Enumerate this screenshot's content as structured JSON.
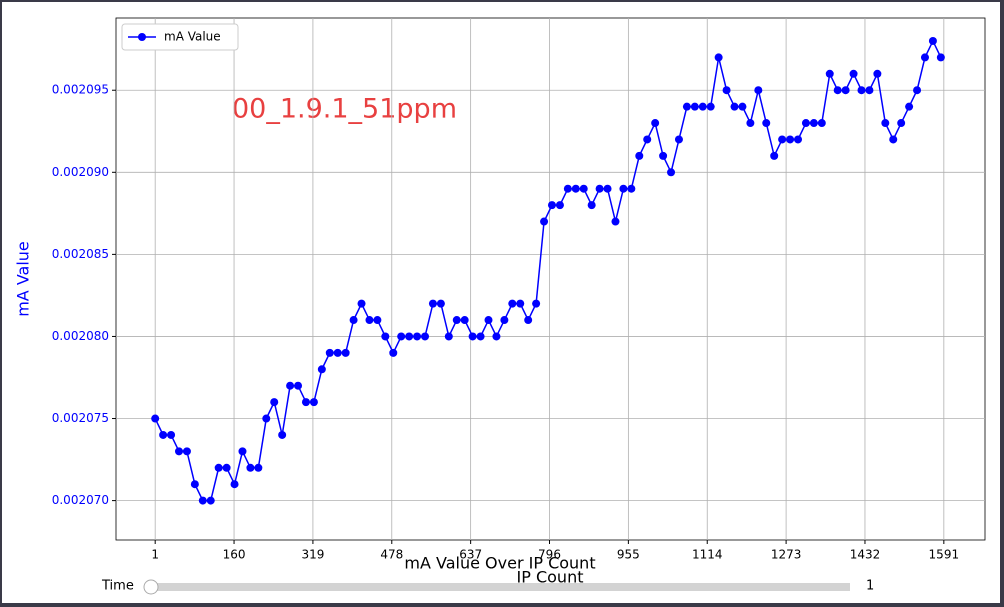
{
  "chart_data": {
    "type": "line",
    "title": "mA Value Over IP Count",
    "x_label": "IP Count",
    "y_label": "mA Value",
    "annotation": "00_1.9.1_51ppm",
    "annotation_color": "#e84040",
    "axis_label_color": "#0000ff",
    "x": [
      1,
      17,
      33,
      49,
      65,
      81,
      97,
      113,
      129,
      145,
      161,
      177,
      193,
      209,
      225,
      241,
      257,
      273,
      289,
      305,
      321,
      337,
      353,
      369,
      385,
      401,
      417,
      433,
      449,
      465,
      481,
      497,
      513,
      529,
      545,
      561,
      577,
      593,
      609,
      625,
      641,
      657,
      673,
      689,
      705,
      721,
      737,
      753,
      769,
      785,
      801,
      817,
      833,
      849,
      865,
      881,
      897,
      913,
      929,
      945,
      961,
      977,
      993,
      1009,
      1025,
      1041,
      1057,
      1073,
      1089,
      1105,
      1121,
      1137,
      1153,
      1169,
      1185,
      1201,
      1217,
      1233,
      1249,
      1265,
      1281,
      1297,
      1313,
      1329,
      1345,
      1361,
      1377,
      1393,
      1409,
      1425,
      1441,
      1457,
      1473,
      1489,
      1505,
      1521,
      1537,
      1553,
      1569,
      1585
    ],
    "series": [
      {
        "name": "mA Value",
        "color": "#0000ff",
        "values": [
          0.002075,
          0.002074,
          0.002074,
          0.002073,
          0.002073,
          0.002071,
          0.00207,
          0.00207,
          0.002072,
          0.002072,
          0.002071,
          0.002073,
          0.002072,
          0.002072,
          0.002075,
          0.002076,
          0.002074,
          0.002077,
          0.002077,
          0.002076,
          0.002076,
          0.002078,
          0.002079,
          0.002079,
          0.002079,
          0.002081,
          0.002082,
          0.002081,
          0.002081,
          0.00208,
          0.002079,
          0.00208,
          0.00208,
          0.00208,
          0.00208,
          0.002082,
          0.002082,
          0.00208,
          0.002081,
          0.002081,
          0.00208,
          0.00208,
          0.002081,
          0.00208,
          0.002081,
          0.002082,
          0.002082,
          0.002081,
          0.002082,
          0.002087,
          0.002088,
          0.002088,
          0.002089,
          0.002089,
          0.002089,
          0.002088,
          0.002089,
          0.002089,
          0.002087,
          0.002089,
          0.002089,
          0.002091,
          0.002092,
          0.002093,
          0.002091,
          0.00209,
          0.002092,
          0.002094,
          0.002094,
          0.002094,
          0.002094,
          0.002097,
          0.002095,
          0.002094,
          0.002094,
          0.002093,
          0.002095,
          0.002093,
          0.002091,
          0.002092,
          0.002092,
          0.002092,
          0.002093,
          0.002093,
          0.002093,
          0.002096,
          0.002095,
          0.002095,
          0.002096,
          0.002095,
          0.002095,
          0.002096,
          0.002093,
          0.002092,
          0.002093,
          0.002094,
          0.002095,
          0.002097,
          0.002098,
          0.002097
        ]
      }
    ],
    "xlim": [
      -78,
      1674
    ],
    "ylim": [
      0.0020676,
      0.0020994
    ],
    "xticks": [
      1,
      160,
      319,
      478,
      637,
      796,
      955,
      1114,
      1273,
      1432,
      1591
    ],
    "yticks": [
      {
        "value": 0.00207,
        "label": "0.002070"
      },
      {
        "value": 0.002075,
        "label": "0.002075"
      },
      {
        "value": 0.00208,
        "label": "0.002080"
      },
      {
        "value": 0.002085,
        "label": "0.002085"
      },
      {
        "value": 0.00209,
        "label": "0.002090"
      },
      {
        "value": 0.002095,
        "label": "0.002095"
      }
    ],
    "grid": true,
    "legend": "upper left"
  },
  "slider": {
    "label": "Time",
    "value": 1
  }
}
